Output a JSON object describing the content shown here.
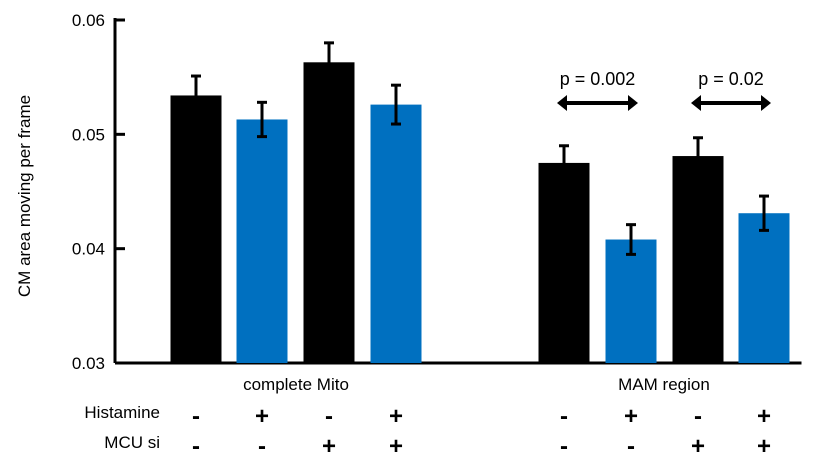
{
  "chart_data": {
    "type": "bar",
    "ylabel": "CM area moving per frame",
    "ylim": [
      0.03,
      0.06
    ],
    "yticks": [
      0.03,
      0.04,
      0.05,
      0.06
    ],
    "ytick_labels": [
      "0.03",
      "0.04",
      "0.05",
      "0.06"
    ],
    "groups": [
      {
        "label": "complete Mito",
        "bars": [
          {
            "value": 0.0534,
            "error": 0.0017,
            "color": "#000000"
          },
          {
            "value": 0.0513,
            "error": 0.0015,
            "color": "#0070C0"
          },
          {
            "value": 0.0563,
            "error": 0.0017,
            "color": "#000000"
          },
          {
            "value": 0.0526,
            "error": 0.0017,
            "color": "#0070C0"
          }
        ]
      },
      {
        "label": "MAM region",
        "bars": [
          {
            "value": 0.0475,
            "error": 0.0015,
            "color": "#000000"
          },
          {
            "value": 0.0408,
            "error": 0.0013,
            "color": "#0070C0"
          },
          {
            "value": 0.0481,
            "error": 0.0016,
            "color": "#000000"
          },
          {
            "value": 0.0431,
            "error": 0.0015,
            "color": "#0070C0"
          }
        ]
      }
    ],
    "conditions": [
      {
        "name": "Histamine",
        "signs": [
          "-",
          "+",
          "-",
          "+",
          "-",
          "+",
          "-",
          "+"
        ]
      },
      {
        "name": "MCU si",
        "signs": [
          "-",
          "-",
          "+",
          "+",
          "-",
          "-",
          "+",
          "+"
        ]
      }
    ],
    "annotations": [
      {
        "text": "p = 0.002",
        "from_bar": 4,
        "to_bar": 5
      },
      {
        "text": "p = 0.02",
        "from_bar": 6,
        "to_bar": 7
      }
    ],
    "colors": {
      "black_series": "#000000",
      "blue_series": "#0070C0"
    }
  }
}
